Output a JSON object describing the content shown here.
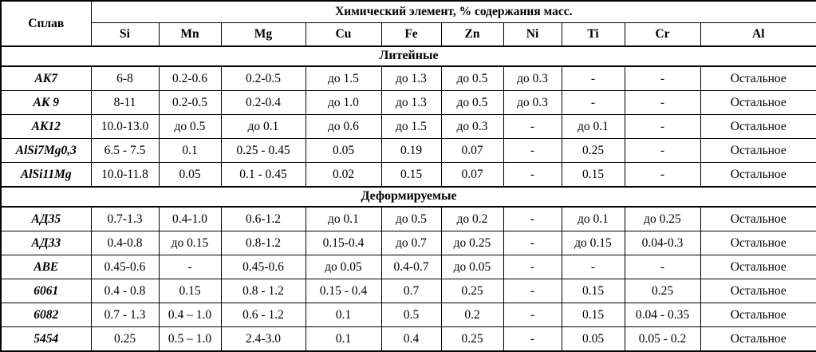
{
  "table": {
    "alloy_header": "Сплав",
    "group_header": "Химический элемент, % содержания масс.",
    "elements": [
      "Si",
      "Mn",
      "Mg",
      "Cu",
      "Fe",
      "Zn",
      "Ni",
      "Ti",
      "Cr",
      "Al"
    ],
    "sections": [
      {
        "title": "Литейные",
        "rows": [
          {
            "alloy": "АК7",
            "values": [
              "6-8",
              "0.2-0.6",
              "0.2-0.5",
              "до 1.5",
              "до 1.3",
              "до 0.5",
              "до 0.3",
              "-",
              "-",
              "Остальное"
            ]
          },
          {
            "alloy": "АК 9",
            "values": [
              "8-11",
              "0.2-0.5",
              "0.2-0.4",
              "до 1.0",
              "до 1.3",
              "до 0.5",
              "до 0.3",
              "-",
              "-",
              "Остальное"
            ]
          },
          {
            "alloy": "АК12",
            "values": [
              "10.0-13.0",
              "до 0.5",
              "до 0.1",
              "до 0.6",
              "до 1.5",
              "до 0.3",
              "-",
              "до 0.1",
              "-",
              "Остальное"
            ]
          },
          {
            "alloy": "AlSi7Mg0,3",
            "values": [
              "6.5 - 7.5",
              "0.1",
              "0.25 - 0.45",
              "0.05",
              "0.19",
              "0.07",
              "-",
              "0.25",
              "-",
              "Остальное"
            ]
          },
          {
            "alloy": "AlSi11Mg",
            "values": [
              "10.0-11.8",
              "0.05",
              "0.1 - 0.45",
              "0.02",
              "0.15",
              "0.07",
              "-",
              "0.15",
              "-",
              "Остальное"
            ]
          }
        ]
      },
      {
        "title": "Деформируемые",
        "rows": [
          {
            "alloy": "АД35",
            "values": [
              "0.7-1.3",
              "0.4-1.0",
              "0.6-1.2",
              "до 0.1",
              "до 0.5",
              "до 0.2",
              "-",
              "до 0.1",
              "до 0.25",
              "Остальное"
            ]
          },
          {
            "alloy": "АД33",
            "values": [
              "0.4-0.8",
              "до 0.15",
              "0.8-1.2",
              "0.15-0.4",
              "до 0.7",
              "до 0.25",
              "-",
              "до 0.15",
              "0.04-0.3",
              "Остальное"
            ]
          },
          {
            "alloy": "АВЕ",
            "values": [
              "0.45-0.6",
              "-",
              "0.45-0.6",
              "до 0.05",
              "0.4-0.7",
              "до 0.05",
              "-",
              "-",
              "-",
              "Остальное"
            ]
          },
          {
            "alloy": "6061",
            "values": [
              "0.4 - 0.8",
              "0.15",
              "0.8 - 1.2",
              "0.15 - 0.4",
              "0.7",
              "0.25",
              "-",
              "0.15",
              "0.25",
              "Остальное"
            ]
          },
          {
            "alloy": "6082",
            "values": [
              "0.7 - 1.3",
              "0.4 – 1.0",
              "0.6 - 1.2",
              "0.1",
              "0.5",
              "0.2",
              "-",
              "0.15",
              "0.04 - 0.35",
              "Остальное"
            ]
          },
          {
            "alloy": "5454",
            "values": [
              "0.25",
              "0.5 – 1.0",
              "2.4-3.0",
              "0.1",
              "0.4",
              "0.25",
              "-",
              "0.05",
              "0.05 - 0.2",
              "Остальное"
            ]
          }
        ]
      }
    ]
  }
}
